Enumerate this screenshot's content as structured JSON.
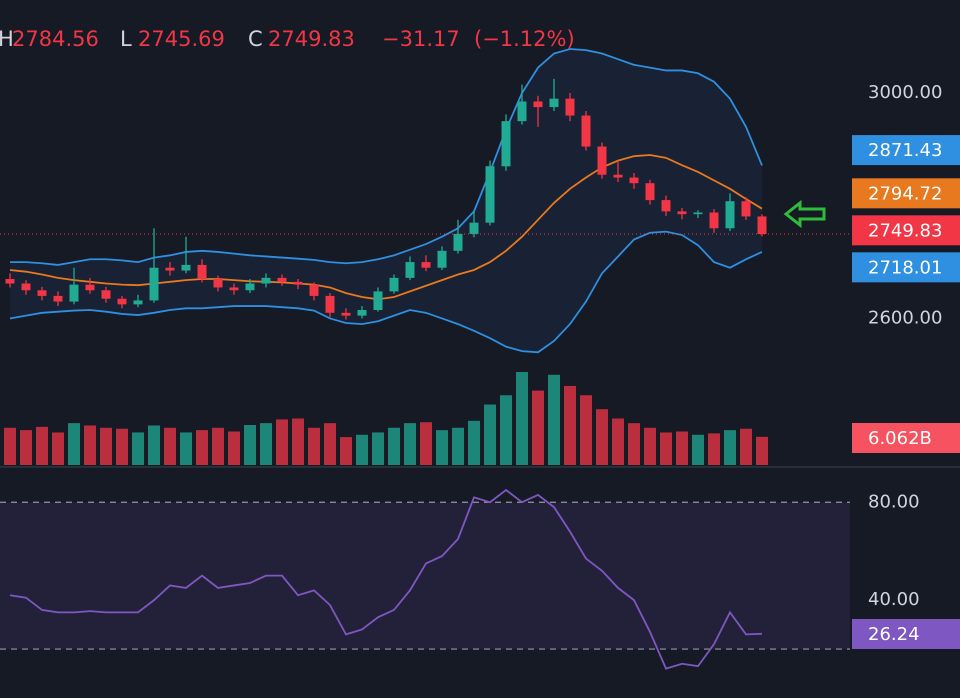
{
  "header": {
    "high_label": "H",
    "low_label": "L",
    "close_label": "C",
    "change": "−31.17",
    "change_pct": "(−1.12%)"
  },
  "chart_data": [
    {
      "type": "candlestick",
      "open": [
        2670,
        2662,
        2650,
        2640,
        2630,
        2660,
        2650,
        2635,
        2625,
        2632,
        2690,
        2685,
        2695,
        2670,
        2655,
        2650,
        2662,
        2672,
        2665,
        2660,
        2640,
        2610,
        2605,
        2615,
        2648,
        2672,
        2700,
        2690,
        2720,
        2750,
        2770,
        2870,
        2950,
        2985,
        2975,
        2990,
        2960,
        2905,
        2855,
        2850,
        2840,
        2810,
        2790,
        2785,
        2788,
        2760,
        2808,
        2781
      ],
      "high": [
        2680,
        2668,
        2656,
        2648,
        2690,
        2672,
        2656,
        2640,
        2642,
        2760,
        2700,
        2745,
        2705,
        2676,
        2662,
        2670,
        2680,
        2678,
        2670,
        2664,
        2645,
        2618,
        2622,
        2655,
        2678,
        2710,
        2712,
        2728,
        2775,
        2790,
        2880,
        2962,
        3015,
        2995,
        3025,
        3000,
        2968,
        2912,
        2880,
        2858,
        2846,
        2818,
        2796,
        2792,
        2794,
        2822,
        2815,
        2784.56
      ],
      "low": [
        2655,
        2642,
        2632,
        2622,
        2625,
        2644,
        2628,
        2618,
        2620,
        2628,
        2676,
        2680,
        2664,
        2648,
        2642,
        2645,
        2655,
        2658,
        2652,
        2632,
        2602,
        2598,
        2600,
        2612,
        2644,
        2668,
        2684,
        2686,
        2715,
        2744,
        2765,
        2862,
        2944,
        2940,
        2968,
        2950,
        2898,
        2848,
        2842,
        2830,
        2802,
        2782,
        2776,
        2778,
        2752,
        2755,
        2775,
        2745.69
      ],
      "close": [
        2662,
        2650,
        2640,
        2630,
        2660,
        2650,
        2635,
        2625,
        2632,
        2690,
        2685,
        2695,
        2670,
        2655,
        2650,
        2662,
        2672,
        2665,
        2660,
        2640,
        2610,
        2605,
        2615,
        2648,
        2672,
        2700,
        2690,
        2720,
        2750,
        2770,
        2870,
        2950,
        2985,
        2975,
        2990,
        2960,
        2905,
        2855,
        2850,
        2840,
        2810,
        2790,
        2785,
        2788,
        2760,
        2808,
        2781,
        2749.83
      ],
      "up_color": "#22ab94",
      "down_color": "#f23645",
      "ylim": [
        2340,
        3165
      ],
      "yticks": [
        {
          "value": 3000,
          "label": "3000.00"
        },
        {
          "value": 2600,
          "label": "2600.00"
        }
      ],
      "bands": {
        "upper": {
          "color": "#2f8fe0",
          "values": [
            2700,
            2700,
            2698,
            2695,
            2700,
            2705,
            2705,
            2703,
            2700,
            2708,
            2712,
            2718,
            2720,
            2718,
            2715,
            2712,
            2710,
            2708,
            2706,
            2704,
            2700,
            2698,
            2700,
            2705,
            2712,
            2722,
            2732,
            2745,
            2760,
            2790,
            2860,
            2935,
            3000,
            3045,
            3070,
            3078,
            3076,
            3070,
            3060,
            3050,
            3045,
            3040,
            3040,
            3035,
            3020,
            2990,
            2940,
            2871.43
          ]
        },
        "basis": {
          "color": "#e8791f",
          "values": [
            2686,
            2683,
            2678,
            2672,
            2668,
            2665,
            2662,
            2660,
            2659,
            2662,
            2665,
            2668,
            2670,
            2670,
            2668,
            2666,
            2665,
            2664,
            2662,
            2660,
            2655,
            2645,
            2638,
            2634,
            2638,
            2648,
            2658,
            2668,
            2678,
            2686,
            2700,
            2720,
            2745,
            2775,
            2805,
            2830,
            2850,
            2868,
            2880,
            2888,
            2890,
            2885,
            2872,
            2860,
            2845,
            2830,
            2812,
            2794.72
          ]
        },
        "lower": {
          "color": "#2f8fe0",
          "values": [
            2600,
            2605,
            2610,
            2612,
            2614,
            2615,
            2612,
            2608,
            2606,
            2610,
            2615,
            2618,
            2618,
            2620,
            2622,
            2622,
            2622,
            2620,
            2618,
            2614,
            2600,
            2592,
            2590,
            2595,
            2605,
            2615,
            2610,
            2600,
            2590,
            2578,
            2565,
            2550,
            2542,
            2540,
            2560,
            2590,
            2630,
            2680,
            2710,
            2740,
            2752,
            2754,
            2748,
            2730,
            2700,
            2690,
            2705,
            2718.01
          ]
        },
        "fill": "#2f8fe0"
      },
      "close_badge_color": "#f23645",
      "volume": {
        "values": [
          8,
          7.5,
          8.2,
          7,
          9,
          8.5,
          8,
          7.8,
          7,
          8.5,
          8,
          7,
          7.5,
          8,
          7.2,
          8.6,
          9,
          9.8,
          10,
          8,
          9,
          6,
          6.5,
          7,
          8,
          9,
          9.2,
          7.5,
          8,
          9.5,
          13,
          15,
          20,
          16,
          19.4,
          17,
          15,
          12,
          10,
          9,
          8,
          7,
          7.2,
          6.5,
          6.8,
          7.5,
          7.8,
          6.062
        ],
        "last_label": "6.062B",
        "ylim": [
          0,
          100
        ],
        "badge_color": "#f7525f"
      }
    },
    {
      "type": "line",
      "values": [
        42,
        41,
        36,
        35,
        35,
        35.5,
        35,
        35,
        35,
        40,
        46,
        45,
        50,
        45,
        46,
        47,
        50,
        50,
        42,
        44,
        38,
        26,
        28,
        33,
        36,
        44,
        55,
        58,
        65,
        82,
        80,
        85,
        80,
        83,
        78,
        68,
        57,
        52,
        45,
        40,
        27,
        12,
        14,
        13,
        22,
        35,
        26,
        26.24
      ],
      "color": "#7e57c2",
      "ylim": [
        0,
        94
      ],
      "yticks": [
        {
          "value": 80,
          "label": "80.00"
        },
        {
          "value": 40,
          "label": "40.00"
        }
      ],
      "bands": [
        80,
        20
      ],
      "band_fill": "#7e57c2"
    }
  ]
}
